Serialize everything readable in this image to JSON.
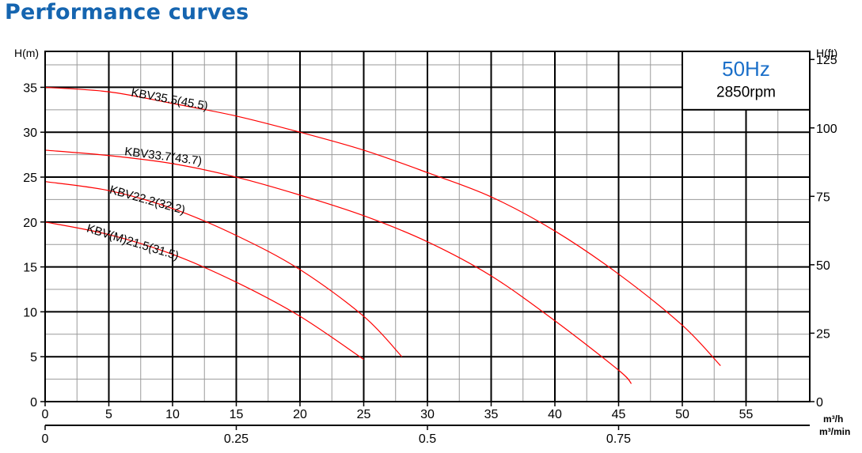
{
  "header": {
    "title": "Performance curves"
  },
  "chart_data": {
    "type": "line",
    "title": "Performance curves",
    "frequency_label": "50Hz",
    "speed_label": "2850rpm",
    "xlabel": "m³/h",
    "xlabel_secondary": "m³/min",
    "ylabel_left": "H(m)",
    "ylabel_right": "H(ft)",
    "xlim": [
      0,
      60
    ],
    "ylim": [
      0,
      39
    ],
    "x_ticks": [
      0,
      5,
      10,
      15,
      20,
      25,
      30,
      35,
      40,
      45,
      50,
      55
    ],
    "y_ticks": [
      0,
      5,
      10,
      15,
      20,
      25,
      30,
      35
    ],
    "x2_ticks": [
      {
        "value": 0,
        "label": "0"
      },
      {
        "value": 0.25,
        "label": "0.25"
      },
      {
        "value": 0.5,
        "label": "0.5"
      },
      {
        "value": 0.75,
        "label": "0.75"
      }
    ],
    "y2_ticks": [
      {
        "value": 0,
        "label": "0"
      },
      {
        "value": 25,
        "label": "25"
      },
      {
        "value": 50,
        "label": "50"
      },
      {
        "value": 75,
        "label": "75"
      },
      {
        "value": 100,
        "label": "100"
      },
      {
        "value": 125,
        "label": "125"
      }
    ],
    "grid": true,
    "series": [
      {
        "name": "KBV35.5(45.5)",
        "color": "#ff0000",
        "points": [
          [
            0,
            35.0
          ],
          [
            5,
            34.5
          ],
          [
            10,
            33.2
          ],
          [
            15,
            31.8
          ],
          [
            20,
            30.0
          ],
          [
            25,
            28.0
          ],
          [
            30,
            25.5
          ],
          [
            35,
            22.8
          ],
          [
            40,
            19.0
          ],
          [
            45,
            14.2
          ],
          [
            50,
            8.5
          ],
          [
            53,
            4.0
          ]
        ]
      },
      {
        "name": "KBV33.7(43.7)",
        "color": "#ff0000",
        "points": [
          [
            0,
            28.0
          ],
          [
            5,
            27.4
          ],
          [
            10,
            26.5
          ],
          [
            15,
            25.0
          ],
          [
            20,
            23.0
          ],
          [
            25,
            20.7
          ],
          [
            30,
            17.8
          ],
          [
            35,
            14.0
          ],
          [
            40,
            9.0
          ],
          [
            45,
            3.5
          ],
          [
            46,
            2.0
          ]
        ]
      },
      {
        "name": "KBV22.2(32.2)",
        "color": "#ff0000",
        "points": [
          [
            0,
            24.5
          ],
          [
            5,
            23.5
          ],
          [
            10,
            21.5
          ],
          [
            15,
            18.5
          ],
          [
            20,
            14.7
          ],
          [
            25,
            9.5
          ],
          [
            28,
            5.0
          ]
        ]
      },
      {
        "name": "KBV(M)21.5(31.5)",
        "color": "#ff0000",
        "points": [
          [
            0,
            20.0
          ],
          [
            5,
            18.6
          ],
          [
            10,
            16.4
          ],
          [
            15,
            13.3
          ],
          [
            20,
            9.5
          ],
          [
            25,
            4.7
          ]
        ]
      }
    ]
  }
}
